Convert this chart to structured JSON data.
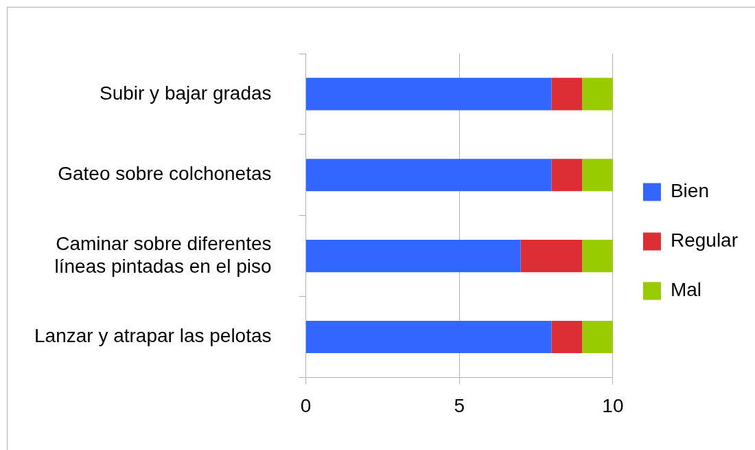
{
  "chart_data": {
    "type": "bar",
    "orientation": "horizontal",
    "stacked": true,
    "categories": [
      "Subir y bajar gradas",
      "Gateo sobre colchonetas",
      "Caminar sobre diferentes líneas pintadas en el piso",
      "Lanzar y atrapar las pelotas"
    ],
    "series": [
      {
        "name": "Bien",
        "color": "#3366ff",
        "values": [
          8,
          8,
          7,
          8
        ]
      },
      {
        "name": "Regular",
        "color": "#dd2d35",
        "values": [
          1,
          1,
          2,
          1
        ]
      },
      {
        "name": "Mal",
        "color": "#99cc00",
        "values": [
          1,
          1,
          1,
          1
        ]
      }
    ],
    "xlim": [
      0,
      10
    ],
    "xticks": [
      0,
      5,
      10
    ],
    "grid": "x",
    "legend": "right"
  }
}
